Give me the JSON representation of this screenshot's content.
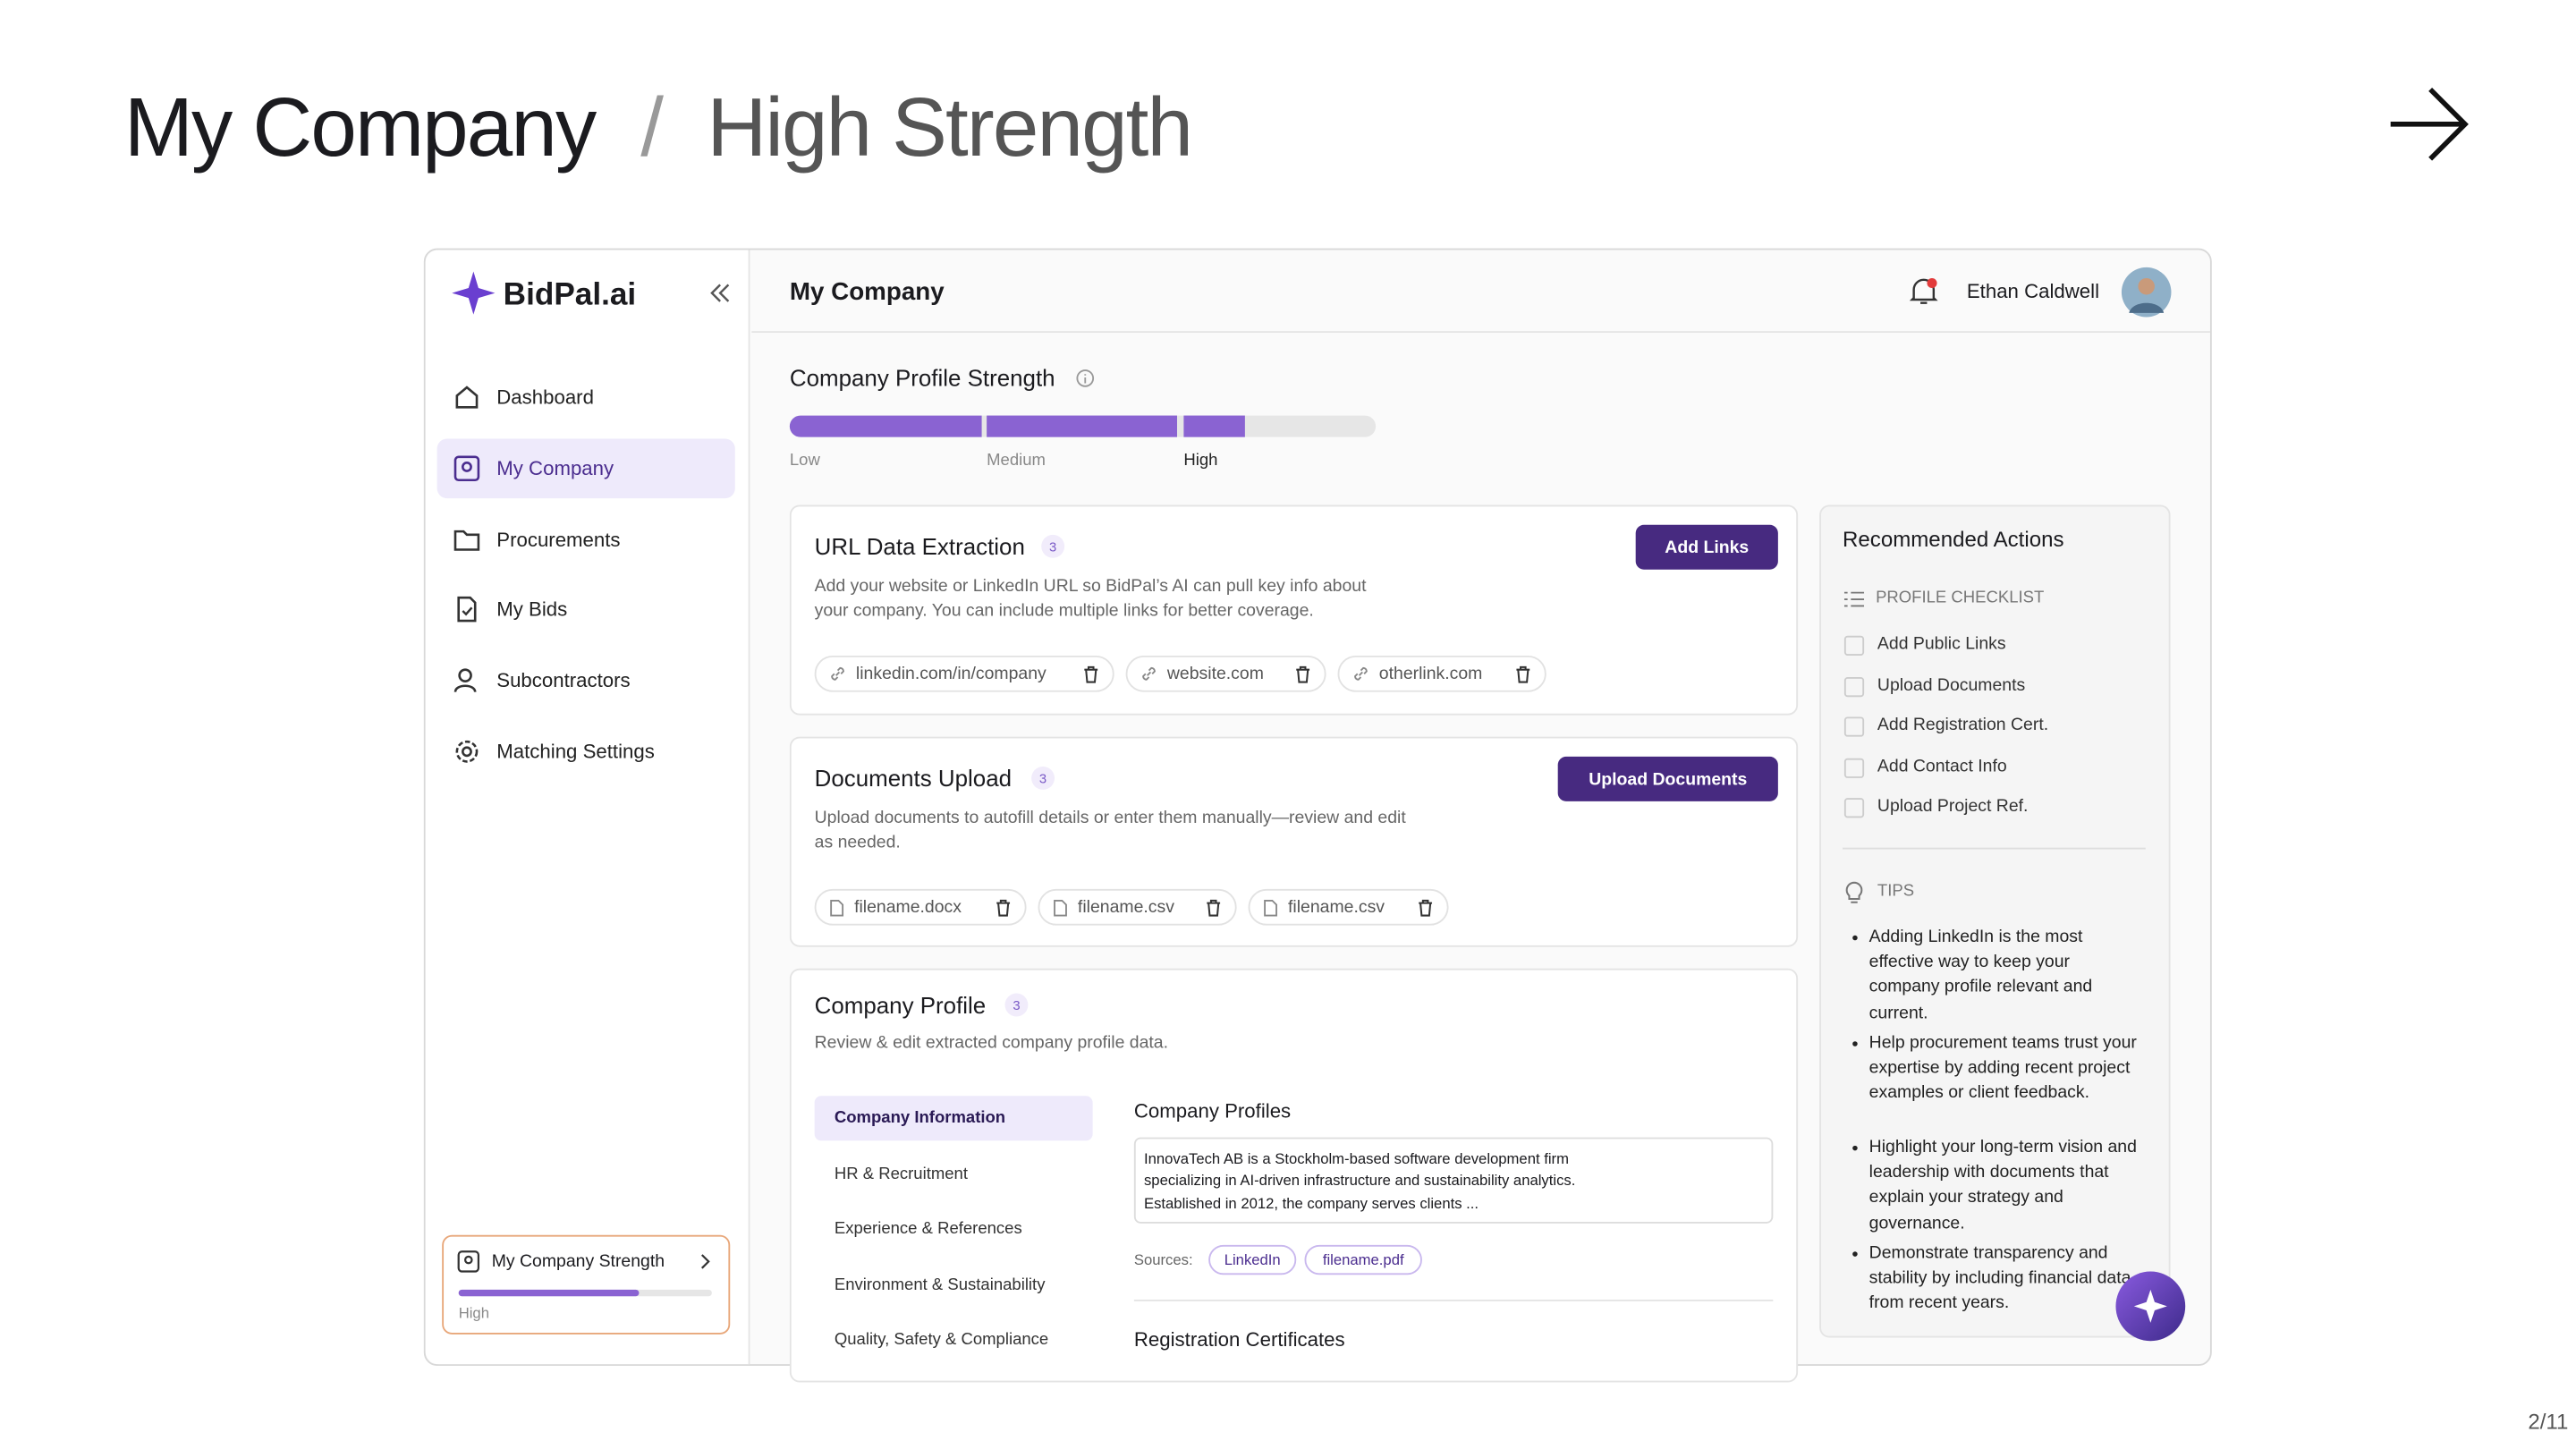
{
  "header": {
    "title": "My Company",
    "separator": "/",
    "subtitle": "High Strength",
    "page": "2/11"
  },
  "app": {
    "logo": "BidPal.ai",
    "nav": [
      "Dashboard",
      "My Company",
      "Procurements",
      "My Bids",
      "Subcontractors",
      "Matching Settings"
    ],
    "strength_card": {
      "title": "My Company Strength",
      "level": "High"
    },
    "topbar": {
      "title": "My Company",
      "user": "Ethan Caldwell"
    },
    "strength": {
      "title": "Company Profile Strength",
      "levels": [
        "Low",
        "Medium",
        "High"
      ]
    },
    "url_section": {
      "title": "URL Data Extraction",
      "count": 3,
      "description": "Add your website or LinkedIn URL so BidPal’s AI can pull key info about your company. You can include multiple links for better coverage.",
      "button": "Add Links",
      "links": [
        "linkedin.com/in/company",
        "website.com",
        "otherlink.com"
      ]
    },
    "docs_section": {
      "title": "Documents Upload",
      "count": 3,
      "description": "Upload documents to autofill details or enter them manually—review and edit as needed.",
      "button": "Upload Documents",
      "files": [
        "filename.docx",
        "filename.csv",
        "filename.csv"
      ]
    },
    "profile_section": {
      "title": "Company Profile",
      "count": 3,
      "description": "Review & edit extracted company profile data.",
      "tabs": [
        "Company Information",
        "HR & Recruitment",
        "Experience & References",
        "Environment & Sustainability",
        "Quality, Safety & Compliance"
      ],
      "subtitle": "Company Profiles",
      "text": [
        "InnovaTech AB is a Stockholm-based software development firm",
        "specializing in AI-driven infrastructure and sustainability analytics.",
        "Established in 2012, the company serves clients ..."
      ],
      "sources_label": "Sources:",
      "sources": [
        "LinkedIn",
        "filename.pdf"
      ],
      "next_heading": "Registration Certificates"
    },
    "recommended": {
      "title": "Recommended Actions",
      "checklist_title": "PROFILE CHECKLIST",
      "checklist": [
        "Add Public Links",
        "Upload Documents",
        "Add Registration Cert.",
        "Add Contact Info",
        "Upload Project Ref."
      ],
      "tips_title": "TIPS",
      "tips": [
        "Adding LinkedIn is the most effective way to keep your company profile relevant and current.",
        "Help procurement teams trust your expertise by adding recent project examples or client feedback.",
        "Highlight your long-term vision and leadership with documents that explain your strategy and governance.",
        "Demonstrate transparency and stability by including financial data from recent years."
      ]
    }
  }
}
